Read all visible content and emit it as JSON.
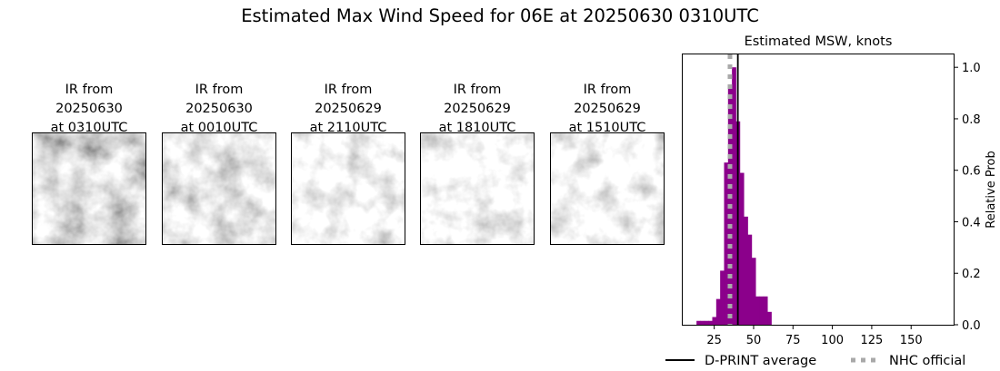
{
  "figure": {
    "title": "Estimated Max Wind Speed for 06E at 20250630 0310UTC"
  },
  "ir_panels": [
    {
      "line1": "IR from",
      "date": "20250630",
      "time": "at 0310UTC"
    },
    {
      "line1": "IR from",
      "date": "20250630",
      "time": "at 0010UTC"
    },
    {
      "line1": "IR from",
      "date": "20250629",
      "time": "at 2110UTC"
    },
    {
      "line1": "IR from",
      "date": "20250629",
      "time": "at 1810UTC"
    },
    {
      "line1": "IR from",
      "date": "20250629",
      "time": "at 1510UTC"
    }
  ],
  "chart_data": {
    "type": "bar",
    "title": "Estimated MSW, knots",
    "xlabel": "",
    "ylabel": "Relative Prob",
    "xlim": [
      5,
      177
    ],
    "ylim": [
      0,
      1.05
    ],
    "xticks": [
      25,
      50,
      75,
      100,
      125,
      150
    ],
    "yticks": [
      0.0,
      0.2,
      0.4,
      0.6,
      0.8,
      1.0
    ],
    "yticks_side": "right",
    "bin_width": 2.5,
    "bar_color": "#8b008b",
    "bins": [
      {
        "x": 15,
        "value": 0.015
      },
      {
        "x": 17.5,
        "value": 0.015
      },
      {
        "x": 20,
        "value": 0.015
      },
      {
        "x": 22.5,
        "value": 0.015
      },
      {
        "x": 25,
        "value": 0.03
      },
      {
        "x": 27.5,
        "value": 0.1
      },
      {
        "x": 30,
        "value": 0.21
      },
      {
        "x": 32.5,
        "value": 0.63
      },
      {
        "x": 35,
        "value": 0.93
      },
      {
        "x": 37.5,
        "value": 1.0
      },
      {
        "x": 40,
        "value": 0.79
      },
      {
        "x": 42.5,
        "value": 0.59
      },
      {
        "x": 45,
        "value": 0.42
      },
      {
        "x": 47.5,
        "value": 0.35
      },
      {
        "x": 50,
        "value": 0.26
      },
      {
        "x": 52.5,
        "value": 0.11
      },
      {
        "x": 55,
        "value": 0.11
      },
      {
        "x": 57.5,
        "value": 0.11
      },
      {
        "x": 60,
        "value": 0.05
      }
    ],
    "lines": [
      {
        "name": "D-PRINT average",
        "x": 40,
        "color": "#000000",
        "style": "solid"
      },
      {
        "name": "NHC official",
        "x": 35,
        "color": "#a9a9a9",
        "style": "dotted"
      }
    ],
    "legend": {
      "placement": "bottom",
      "entries": [
        "D-PRINT average",
        "NHC official"
      ]
    }
  }
}
